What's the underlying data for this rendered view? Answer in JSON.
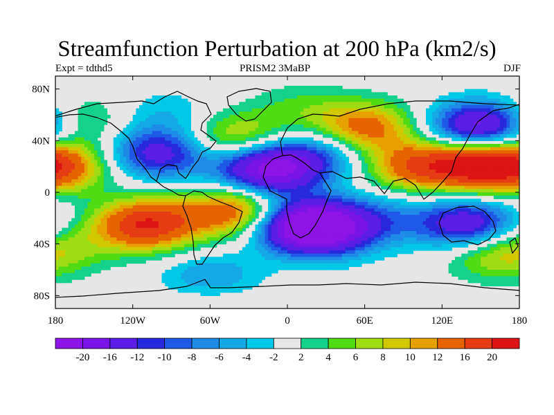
{
  "title": "Streamfunction Perturbation at 200 hPa (km2/s)",
  "subtitle_left": "Expt = tdthd5",
  "subtitle_center": "PRISM2    3MaBP",
  "subtitle_right": "DJF",
  "chart_data": {
    "type": "heatmap",
    "title": "Streamfunction Perturbation at 200 hPa (km2/s)",
    "xlabel": "",
    "ylabel": "",
    "x_ticks": [
      "180",
      "120W",
      "60W",
      "0",
      "60E",
      "120E",
      "180"
    ],
    "y_ticks": [
      "80N",
      "40N",
      "0",
      "40S",
      "80S"
    ],
    "xlim": [
      -180,
      180
    ],
    "ylim": [
      -90,
      90
    ],
    "fill_color_for_minus2_to_2": "#e6e6e6",
    "colorbar": {
      "labels": [
        "-20",
        "-16",
        "-12",
        "-10",
        "-8",
        "-6",
        "-4",
        "-2",
        "2",
        "4",
        "6",
        "8",
        "10",
        "12",
        "16",
        "20"
      ],
      "colors": [
        "#8c14e6",
        "#7814e6",
        "#5a1ee6",
        "#2828dc",
        "#1e5ae6",
        "#1e8ce6",
        "#14a8e6",
        "#00c8e6",
        "#e6e6e6",
        "#14d28c",
        "#50dc14",
        "#a0dc14",
        "#d2c800",
        "#e6a000",
        "#e66400",
        "#e63c14",
        "#dc1414"
      ]
    },
    "centers": [
      {
        "lon": -160,
        "lat": 55,
        "value": 6
      },
      {
        "lon": -100,
        "lat": 30,
        "value": -14
      },
      {
        "lon": -95,
        "lat": 60,
        "value": -4
      },
      {
        "lon": -15,
        "lat": 18,
        "value": -22
      },
      {
        "lon": 25,
        "lat": 30,
        "value": -8
      },
      {
        "lon": -110,
        "lat": -25,
        "value": 20
      },
      {
        "lon": -175,
        "lat": 20,
        "value": 12
      },
      {
        "lon": -60,
        "lat": -68,
        "value": -8
      },
      {
        "lon": -40,
        "lat": -15,
        "value": 16
      },
      {
        "lon": 10,
        "lat": -25,
        "value": -20
      },
      {
        "lon": 30,
        "lat": -30,
        "value": -14
      },
      {
        "lon": 70,
        "lat": -20,
        "value": -6
      },
      {
        "lon": 140,
        "lat": -25,
        "value": -16
      },
      {
        "lon": 160,
        "lat": -48,
        "value": 8
      },
      {
        "lon": -40,
        "lat": 42,
        "value": 10
      },
      {
        "lon": 60,
        "lat": 50,
        "value": 14
      },
      {
        "lon": 10,
        "lat": 65,
        "value": 4
      },
      {
        "lon": 150,
        "lat": 50,
        "value": -20
      },
      {
        "lon": 150,
        "lat": 22,
        "value": 20
      },
      {
        "lon": 100,
        "lat": 20,
        "value": 14
      },
      {
        "lon": -60,
        "lat": -82,
        "value": 4
      },
      {
        "lon": -170,
        "lat": -42,
        "value": 4
      }
    ]
  }
}
